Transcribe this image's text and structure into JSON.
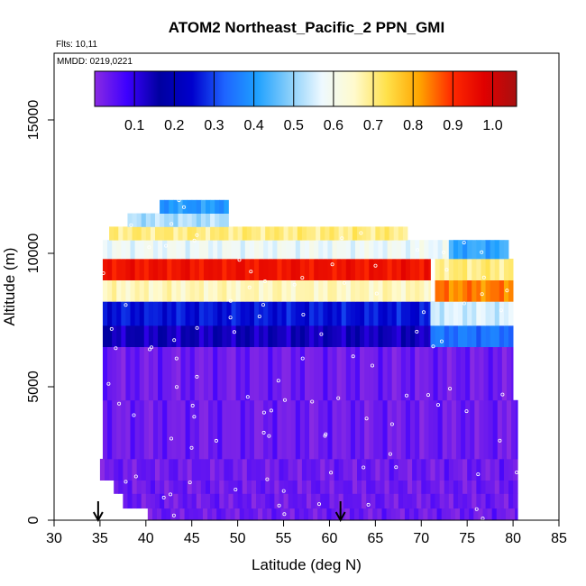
{
  "chart_data": {
    "type": "heatmap",
    "title": "ATOM2 Northeast_Pacific_2 PPN_GMI",
    "annotations": [
      "Flts: 10,11",
      "MMDD: 0219,0221"
    ],
    "xlabel": "Latitude (deg N)",
    "ylabel": "Altitude (m)",
    "xlim": [
      30,
      85
    ],
    "ylim": [
      0,
      17500
    ],
    "x_ticks": [
      30,
      35,
      40,
      45,
      50,
      55,
      60,
      65,
      70,
      75,
      80,
      85
    ],
    "y_ticks": [
      0,
      5000,
      10000,
      15000
    ],
    "colorbar": {
      "range": [
        0,
        1.06
      ],
      "ticks": [
        "0.1",
        "0.2",
        "0.3",
        "0.4",
        "0.5",
        "0.6",
        "0.7",
        "0.8",
        "0.9",
        "1.0"
      ],
      "tick_values": [
        0.1,
        0.2,
        0.3,
        0.4,
        0.5,
        0.6,
        0.7,
        0.8,
        0.9,
        1.0
      ],
      "colors": [
        "#8a2be2",
        "#3d00ff",
        "#0000a0",
        "#0000cd",
        "#1e64ff",
        "#1ea0ff",
        "#87cefa",
        "#eef9ff",
        "#fffacd",
        "#ffe14a",
        "#ffa500",
        "#ff2a00",
        "#e00000",
        "#a81010"
      ]
    },
    "flight_markers_lat": [
      34.8,
      61.2
    ],
    "altitude_bands": [
      {
        "alt": [
          0,
          450
        ],
        "lat": [
          40.2,
          80.5
        ],
        "value": 0.03
      },
      {
        "alt": [
          450,
          1000
        ],
        "lat": [
          37.5,
          80.5
        ],
        "value": 0.03
      },
      {
        "alt": [
          1000,
          1500
        ],
        "lat": [
          36.5,
          80.5
        ],
        "value": 0.03
      },
      {
        "alt": [
          1500,
          2300
        ],
        "lat": [
          35.0,
          80.5
        ],
        "value": 0.03
      },
      {
        "alt": [
          2300,
          4500
        ],
        "lat": [
          35.3,
          80.5
        ],
        "value": 0.03
      },
      {
        "alt": [
          4500,
          6500
        ],
        "lat": [
          35.3,
          80.0
        ],
        "value": 0.03
      },
      {
        "alt": [
          6500,
          7300
        ],
        "lat": [
          35.3,
          71.0
        ],
        "value": 0.14
      },
      {
        "alt": [
          6500,
          7300
        ],
        "lat": [
          71.0,
          80.0
        ],
        "value": 0.35
      },
      {
        "alt": [
          7300,
          8200
        ],
        "lat": [
          35.3,
          71.0
        ],
        "value": 0.26
      },
      {
        "alt": [
          7300,
          8200
        ],
        "lat": [
          71.0,
          80.0
        ],
        "value": 0.55
      },
      {
        "alt": [
          8200,
          9000
        ],
        "lat": [
          35.3,
          71.0
        ],
        "value": 0.66
      },
      {
        "alt": [
          8200,
          9000
        ],
        "lat": [
          71.5,
          80.0
        ],
        "value": 0.84
      },
      {
        "alt": [
          9000,
          9800
        ],
        "lat": [
          35.3,
          71.0
        ],
        "value": 0.94
      },
      {
        "alt": [
          9000,
          9800
        ],
        "lat": [
          71.5,
          80.0
        ],
        "value": 0.7
      },
      {
        "alt": [
          9800,
          10500
        ],
        "lat": [
          35.3,
          73.0
        ],
        "value": 0.58
      },
      {
        "alt": [
          9800,
          10500
        ],
        "lat": [
          73.0,
          79.5
        ],
        "value": 0.42
      },
      {
        "alt": [
          10500,
          11000
        ],
        "lat": [
          36.0,
          68.5
        ],
        "value": 0.7
      },
      {
        "alt": [
          11000,
          11500
        ],
        "lat": [
          38.0,
          49.0
        ],
        "value": 0.52
      },
      {
        "alt": [
          11500,
          12000
        ],
        "lat": [
          41.5,
          49.0
        ],
        "value": 0.4
      }
    ]
  }
}
